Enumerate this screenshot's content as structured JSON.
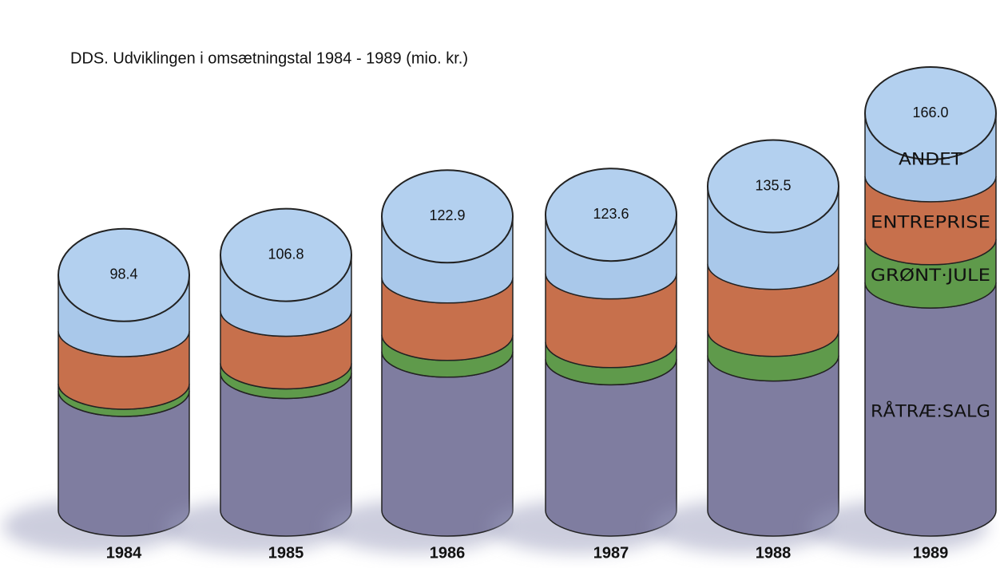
{
  "chart_data": {
    "type": "stacked-cylinder",
    "title": "DDS. Udviklingen i omsætningstal 1984 - 1989 (mio. kr.)",
    "categories": [
      "1984",
      "1985",
      "1986",
      "1987",
      "1988",
      "1989"
    ],
    "totals": [
      98.4,
      106.8,
      122.9,
      123.6,
      135.5,
      166.0
    ],
    "totals_labels": [
      "98.4",
      "106.8",
      "122.9",
      "123.6",
      "135.5",
      "166.0"
    ],
    "series": [
      {
        "name": "RÅTRÆ:SALG",
        "color": "#7f7da0",
        "values": [
          50,
          57.5,
          66.4,
          63.2,
          64.8,
          95.3
        ]
      },
      {
        "name": "GRØNT·JULE",
        "color": "#5f9a4b",
        "values": [
          3,
          4,
          7,
          7.2,
          10.3,
          18.1
        ]
      },
      {
        "name": "ENTREPRISE",
        "color": "#c7704c",
        "values": [
          22,
          22,
          24,
          28.7,
          28,
          26.3
        ]
      },
      {
        "name": "ANDET",
        "color": "#a9c8ea",
        "values": [
          23.4,
          23.3,
          25.5,
          24.5,
          32.4,
          26.3
        ]
      }
    ]
  }
}
